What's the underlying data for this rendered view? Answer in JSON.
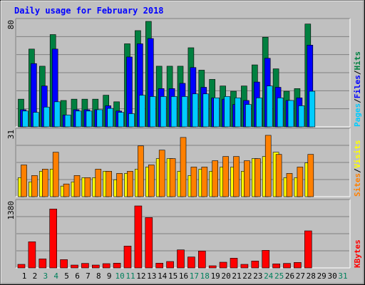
{
  "chart_data": {
    "type": "bar",
    "title": "Daily usage for February 2018",
    "x": [
      "1",
      "2",
      "3",
      "4",
      "5",
      "6",
      "7",
      "8",
      "9",
      "10",
      "11",
      "12",
      "13",
      "14",
      "15",
      "16",
      "17",
      "18",
      "19",
      "20",
      "21",
      "22",
      "23",
      "24",
      "25",
      "26",
      "27",
      "28",
      "29",
      "30",
      "31"
    ],
    "weekend_days": [
      "3",
      "4",
      "10",
      "11",
      "17",
      "18",
      "24",
      "25",
      "31"
    ],
    "panels": [
      {
        "id": "hits_files_pages",
        "max_label": "80",
        "ylim": [
          0,
          80
        ],
        "legend": [
          {
            "label": "Pages",
            "color": "#00ccff"
          },
          {
            "label": "Files",
            "color": "#0000ff"
          },
          {
            "label": "Hits",
            "color": "#008040"
          }
        ],
        "series": [
          {
            "name": "Hits",
            "color": "#008040",
            "values": [
              21,
              59,
              46,
              70,
              20,
              21,
              21,
              21,
              24,
              19,
              63,
              73,
              80,
              46,
              46,
              46,
              60,
              43,
              36,
              31,
              27,
              31,
              47,
              68,
              44,
              27,
              29,
              78
            ]
          },
          {
            "name": "Files",
            "color": "#0000ff",
            "values": [
              13,
              48,
              31,
              59,
              9,
              13,
              13,
              13,
              16,
              12,
              53,
              63,
              67,
              29,
              29,
              33,
              45,
              30,
              22,
              21,
              17,
              20,
              34,
              52,
              30,
              20,
              22,
              62
            ]
          },
          {
            "name": "Pages",
            "color": "#00ccff",
            "values": [
              12,
              11,
              15,
              19,
              9,
              12,
              12,
              13,
              14,
              11,
              10,
              24,
              23,
              23,
              23,
              23,
              25,
              25,
              22,
              23,
              22,
              17,
              22,
              31,
              22,
              20,
              16,
              27
            ]
          }
        ]
      },
      {
        "id": "visits_sites",
        "max_label": "31",
        "ylim": [
          0,
          31
        ],
        "legend": [
          {
            "label": "Sites",
            "color": "#ff8000"
          },
          {
            "label": "/",
            "color": "#000000"
          },
          {
            "label": "Visits",
            "color": "#ffff00"
          }
        ],
        "series": [
          {
            "name": "Visits",
            "color": "#ffff00",
            "values": [
              9,
              7,
              12,
              13,
              5,
              7,
              9,
              9,
              12,
              8,
              11,
              13,
              14,
              18,
              18,
              12,
              10,
              13,
              12,
              14,
              14,
              12,
              18,
              19,
              21,
              9,
              9,
              16
            ]
          },
          {
            "name": "Sites",
            "color": "#ff8000",
            "values": [
              15,
              10,
              13,
              21,
              6,
              10,
              9,
              13,
              12,
              11,
              12,
              24,
              15,
              22,
              18,
              28,
              14,
              14,
              17,
              19,
              19,
              17,
              18,
              29,
              20,
              11,
              14,
              20
            ]
          }
        ]
      },
      {
        "id": "kbytes",
        "max_label": "1380",
        "ylim": [
          0,
          1380
        ],
        "legend": [
          {
            "label": "KBytes",
            "color": "#ff0000"
          }
        ],
        "series": [
          {
            "name": "KBytes",
            "color": "#ff0000",
            "values": [
              75,
              550,
              190,
              1240,
              175,
              60,
              95,
              60,
              90,
              100,
              460,
              1305,
              1060,
              100,
              135,
              380,
              230,
              355,
              45,
              120,
              205,
              75,
              145,
              370,
              85,
              95,
              115,
              780
            ]
          }
        ]
      }
    ],
    "grid": true,
    "colors": {
      "background": "#c0c0c0",
      "title": "#0000ff",
      "weekday_label": "#000000",
      "weekend_label": "#00805c"
    }
  }
}
